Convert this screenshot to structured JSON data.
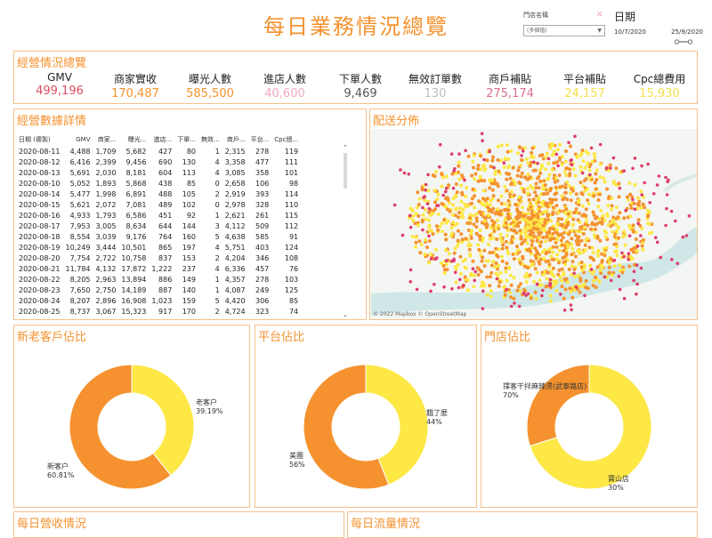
{
  "title": "每日業務情況總覽",
  "filter": {
    "label": "門店名稱",
    "clear": "⤫",
    "value": "(多個值)"
  },
  "date": {
    "label": "日期",
    "from": "10/7/2020",
    "to": "25/9/2020"
  },
  "colors": {
    "accent": "#f5922f",
    "yellow": "#fde845",
    "orange": "#f5922f",
    "pink": "#e03c6e",
    "red": "#d94b62"
  },
  "overview": {
    "title": "經營情況總覽",
    "kpis": [
      {
        "label": "GMV",
        "value": "499,196",
        "color": "#d94b62"
      },
      {
        "label": "商家實收",
        "value": "170,487",
        "color": "#f5922f"
      },
      {
        "label": "曝光人數",
        "value": "585,500",
        "color": "#f5922f"
      },
      {
        "label": "進店人數",
        "value": "40,600",
        "color": "#f0a8c0"
      },
      {
        "label": "下單人數",
        "value": "9,469",
        "color": "#555555"
      },
      {
        "label": "無效訂單數",
        "value": "130",
        "color": "#bbbbbb"
      },
      {
        "label": "商戶補貼",
        "value": "275,174",
        "color": "#d9708c"
      },
      {
        "label": "平台補貼",
        "value": "24,157",
        "color": "#f2e14a"
      },
      {
        "label": "Cpc總費用",
        "value": "15,930",
        "color": "#f2e14a"
      }
    ]
  },
  "details": {
    "title": "經營數據詳情",
    "columns": [
      "日期 (複製)",
      "GMV",
      "商家...",
      "曝光...",
      "進店...",
      "下單...",
      "無效...",
      "商戶...",
      "平台...",
      "Cpc總..."
    ],
    "rows": [
      [
        "2020-08-11",
        "4,488",
        "1,709",
        "5,682",
        "427",
        "80",
        "1",
        "2,315",
        "278",
        "119"
      ],
      [
        "2020-08-12",
        "6,416",
        "2,399",
        "9,456",
        "690",
        "130",
        "4",
        "3,358",
        "477",
        "111"
      ],
      [
        "2020-08-13",
        "5,691",
        "2,030",
        "8,181",
        "604",
        "113",
        "4",
        "3,085",
        "358",
        "101"
      ],
      [
        "2020-08-10",
        "5,052",
        "1,893",
        "5,868",
        "438",
        "85",
        "0",
        "2,658",
        "106",
        "98"
      ],
      [
        "2020-08-14",
        "5,477",
        "1,998",
        "6,891",
        "488",
        "105",
        "2",
        "2,919",
        "393",
        "114"
      ],
      [
        "2020-08-15",
        "5,621",
        "2,072",
        "7,081",
        "489",
        "102",
        "0",
        "2,978",
        "328",
        "110"
      ],
      [
        "2020-08-16",
        "4,933",
        "1,793",
        "6,586",
        "451",
        "92",
        "1",
        "2,621",
        "261",
        "115"
      ],
      [
        "2020-08-17",
        "7,953",
        "3,005",
        "8,634",
        "644",
        "144",
        "3",
        "4,112",
        "509",
        "112"
      ],
      [
        "2020-08-18",
        "8,554",
        "3,039",
        "9,176",
        "764",
        "160",
        "5",
        "4,638",
        "585",
        "91"
      ],
      [
        "2020-08-19",
        "10,249",
        "3,444",
        "10,501",
        "865",
        "197",
        "4",
        "5,751",
        "403",
        "124"
      ],
      [
        "2020-08-20",
        "7,754",
        "2,722",
        "10,758",
        "837",
        "153",
        "2",
        "4,204",
        "346",
        "108"
      ],
      [
        "2020-08-21",
        "11,784",
        "4,132",
        "17,872",
        "1,222",
        "237",
        "4",
        "6,336",
        "457",
        "76"
      ],
      [
        "2020-08-22",
        "8,205",
        "2,963",
        "13,894",
        "886",
        "149",
        "1",
        "4,357",
        "278",
        "103"
      ],
      [
        "2020-08-23",
        "7,650",
        "2,750",
        "14,189",
        "887",
        "140",
        "1",
        "4,087",
        "249",
        "125"
      ],
      [
        "2020-08-24",
        "8,207",
        "2,896",
        "16,908",
        "1,023",
        "159",
        "5",
        "4,420",
        "306",
        "85"
      ],
      [
        "2020-08-25",
        "8,737",
        "3,067",
        "15,323",
        "917",
        "170",
        "2",
        "4,724",
        "323",
        "74"
      ]
    ]
  },
  "map": {
    "title": "配送分佈",
    "credit": "© 2022 Mapbox © OpenStreetMap"
  },
  "donuts": [
    {
      "title": "新老客戶佔比",
      "slices": [
        {
          "label": "老客户",
          "pct": "39.19%",
          "value": 39.19,
          "color": "#fde845"
        },
        {
          "label": "新客户",
          "pct": "60.81%",
          "value": 60.81,
          "color": "#f5922f"
        }
      ]
    },
    {
      "title": "平台佔比",
      "slices": [
        {
          "label": "餓了麼",
          "pct": "44%",
          "value": 44,
          "color": "#fde845"
        },
        {
          "label": "美團",
          "pct": "56%",
          "value": 56,
          "color": "#f5922f"
        }
      ]
    },
    {
      "title": "門店佔比",
      "slices": [
        {
          "label": "擇客干拌麻辣燙(武寧路店)",
          "pct": "70%",
          "value": 70,
          "color": "#fde845"
        },
        {
          "label": "寶山店",
          "pct": "30%",
          "value": 30,
          "color": "#f5922f"
        }
      ]
    }
  ],
  "bottom": {
    "left_title": "每日營收情況",
    "right_title": "每日流量情況"
  },
  "chart_data": [
    {
      "type": "pie",
      "title": "新老客戶佔比",
      "categories": [
        "老客户",
        "新客户"
      ],
      "values": [
        39.19,
        60.81
      ]
    },
    {
      "type": "pie",
      "title": "平台佔比",
      "categories": [
        "餓了麼",
        "美團"
      ],
      "values": [
        44,
        56
      ]
    },
    {
      "type": "pie",
      "title": "門店佔比",
      "categories": [
        "擇客干拌麻辣燙(武寧路店)",
        "寶山店"
      ],
      "values": [
        70,
        30
      ]
    },
    {
      "type": "table",
      "title": "經營數據詳情"
    }
  ]
}
